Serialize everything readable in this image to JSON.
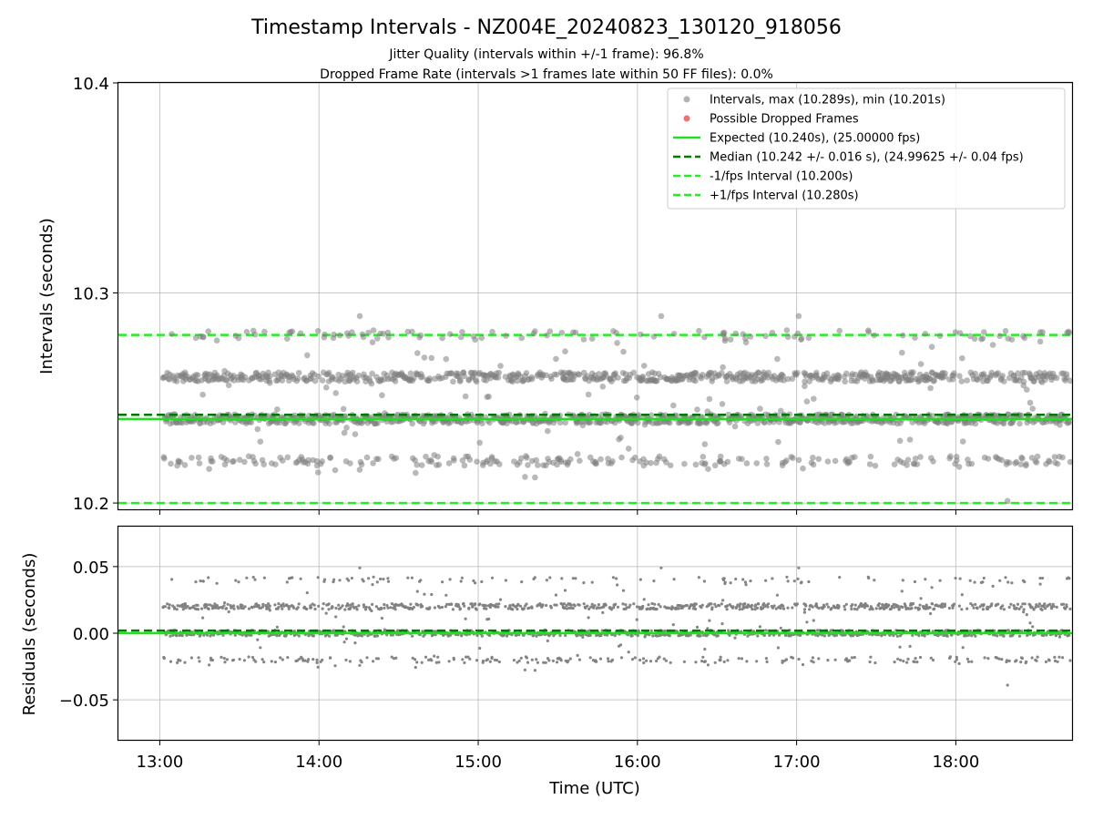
{
  "chart_data": [
    {
      "type": "scatter",
      "panel": "intervals",
      "title": "Timestamp Intervals - NZ004E_20240823_130120_918056",
      "subtitle_lines": [
        "Jitter Quality (intervals within +/-1 frame): 96.8%",
        "Dropped Frame Rate (intervals >1 frames late within 50 FF files): 0.0%"
      ],
      "ylabel": "Intervals (seconds)",
      "ylim": [
        10.197,
        10.4
      ],
      "yticks": [
        10.2,
        10.3,
        10.4
      ],
      "ytick_labels": [
        "10.2",
        "10.3",
        "10.4"
      ],
      "xlim": [
        12.74,
        18.73
      ],
      "grid": true,
      "legend_position": "upper-right",
      "legend": [
        "Intervals, max (10.289s), min (10.201s)",
        "Possible Dropped Frames",
        "Expected (10.240s), (25.00000 fps)",
        "Median (10.242 +/- 0.016 s), (24.99625 +/- 0.04 fps)",
        "-1/fps Interval (10.200s)",
        "+1/fps Interval (10.280s)"
      ],
      "reference_lines": {
        "expected": 10.24,
        "median": 10.242,
        "minus_one_fps": 10.2,
        "plus_one_fps": 10.28
      },
      "point_levels": [
        10.22,
        10.24,
        10.26,
        10.28
      ],
      "level_weights": [
        0.13,
        0.4,
        0.36,
        0.05
      ],
      "max": 10.289,
      "min": 10.201,
      "time_range_hours": [
        13.02,
        18.72
      ],
      "approx_point_count": 2000,
      "dropped_frames": []
    },
    {
      "type": "scatter",
      "panel": "residuals",
      "xlabel": "Time (UTC)",
      "ylabel": "Residuals (seconds)",
      "ylim": [
        -0.08,
        0.08
      ],
      "yticks": [
        -0.05,
        0.0,
        0.05
      ],
      "ytick_labels": [
        "−0.05",
        "0.00",
        "0.05"
      ],
      "xlim": [
        12.74,
        18.73
      ],
      "xticks": [
        13,
        14,
        15,
        16,
        17,
        18
      ],
      "xtick_labels": [
        "13:00",
        "14:00",
        "15:00",
        "16:00",
        "17:00",
        "18:00"
      ],
      "grid": true,
      "reference_lines": {
        "zero": 0.0,
        "median_offset": 0.002
      },
      "point_levels": [
        -0.02,
        0.0,
        0.02,
        0.04
      ],
      "level_weights": [
        0.13,
        0.4,
        0.36,
        0.05
      ],
      "min": -0.039,
      "max": 0.049
    }
  ],
  "colors": {
    "points": "#808080",
    "dropped": "#f06060",
    "expected": "#22dd22",
    "median": "#007a00",
    "fps_bounds": "#22ee22"
  }
}
